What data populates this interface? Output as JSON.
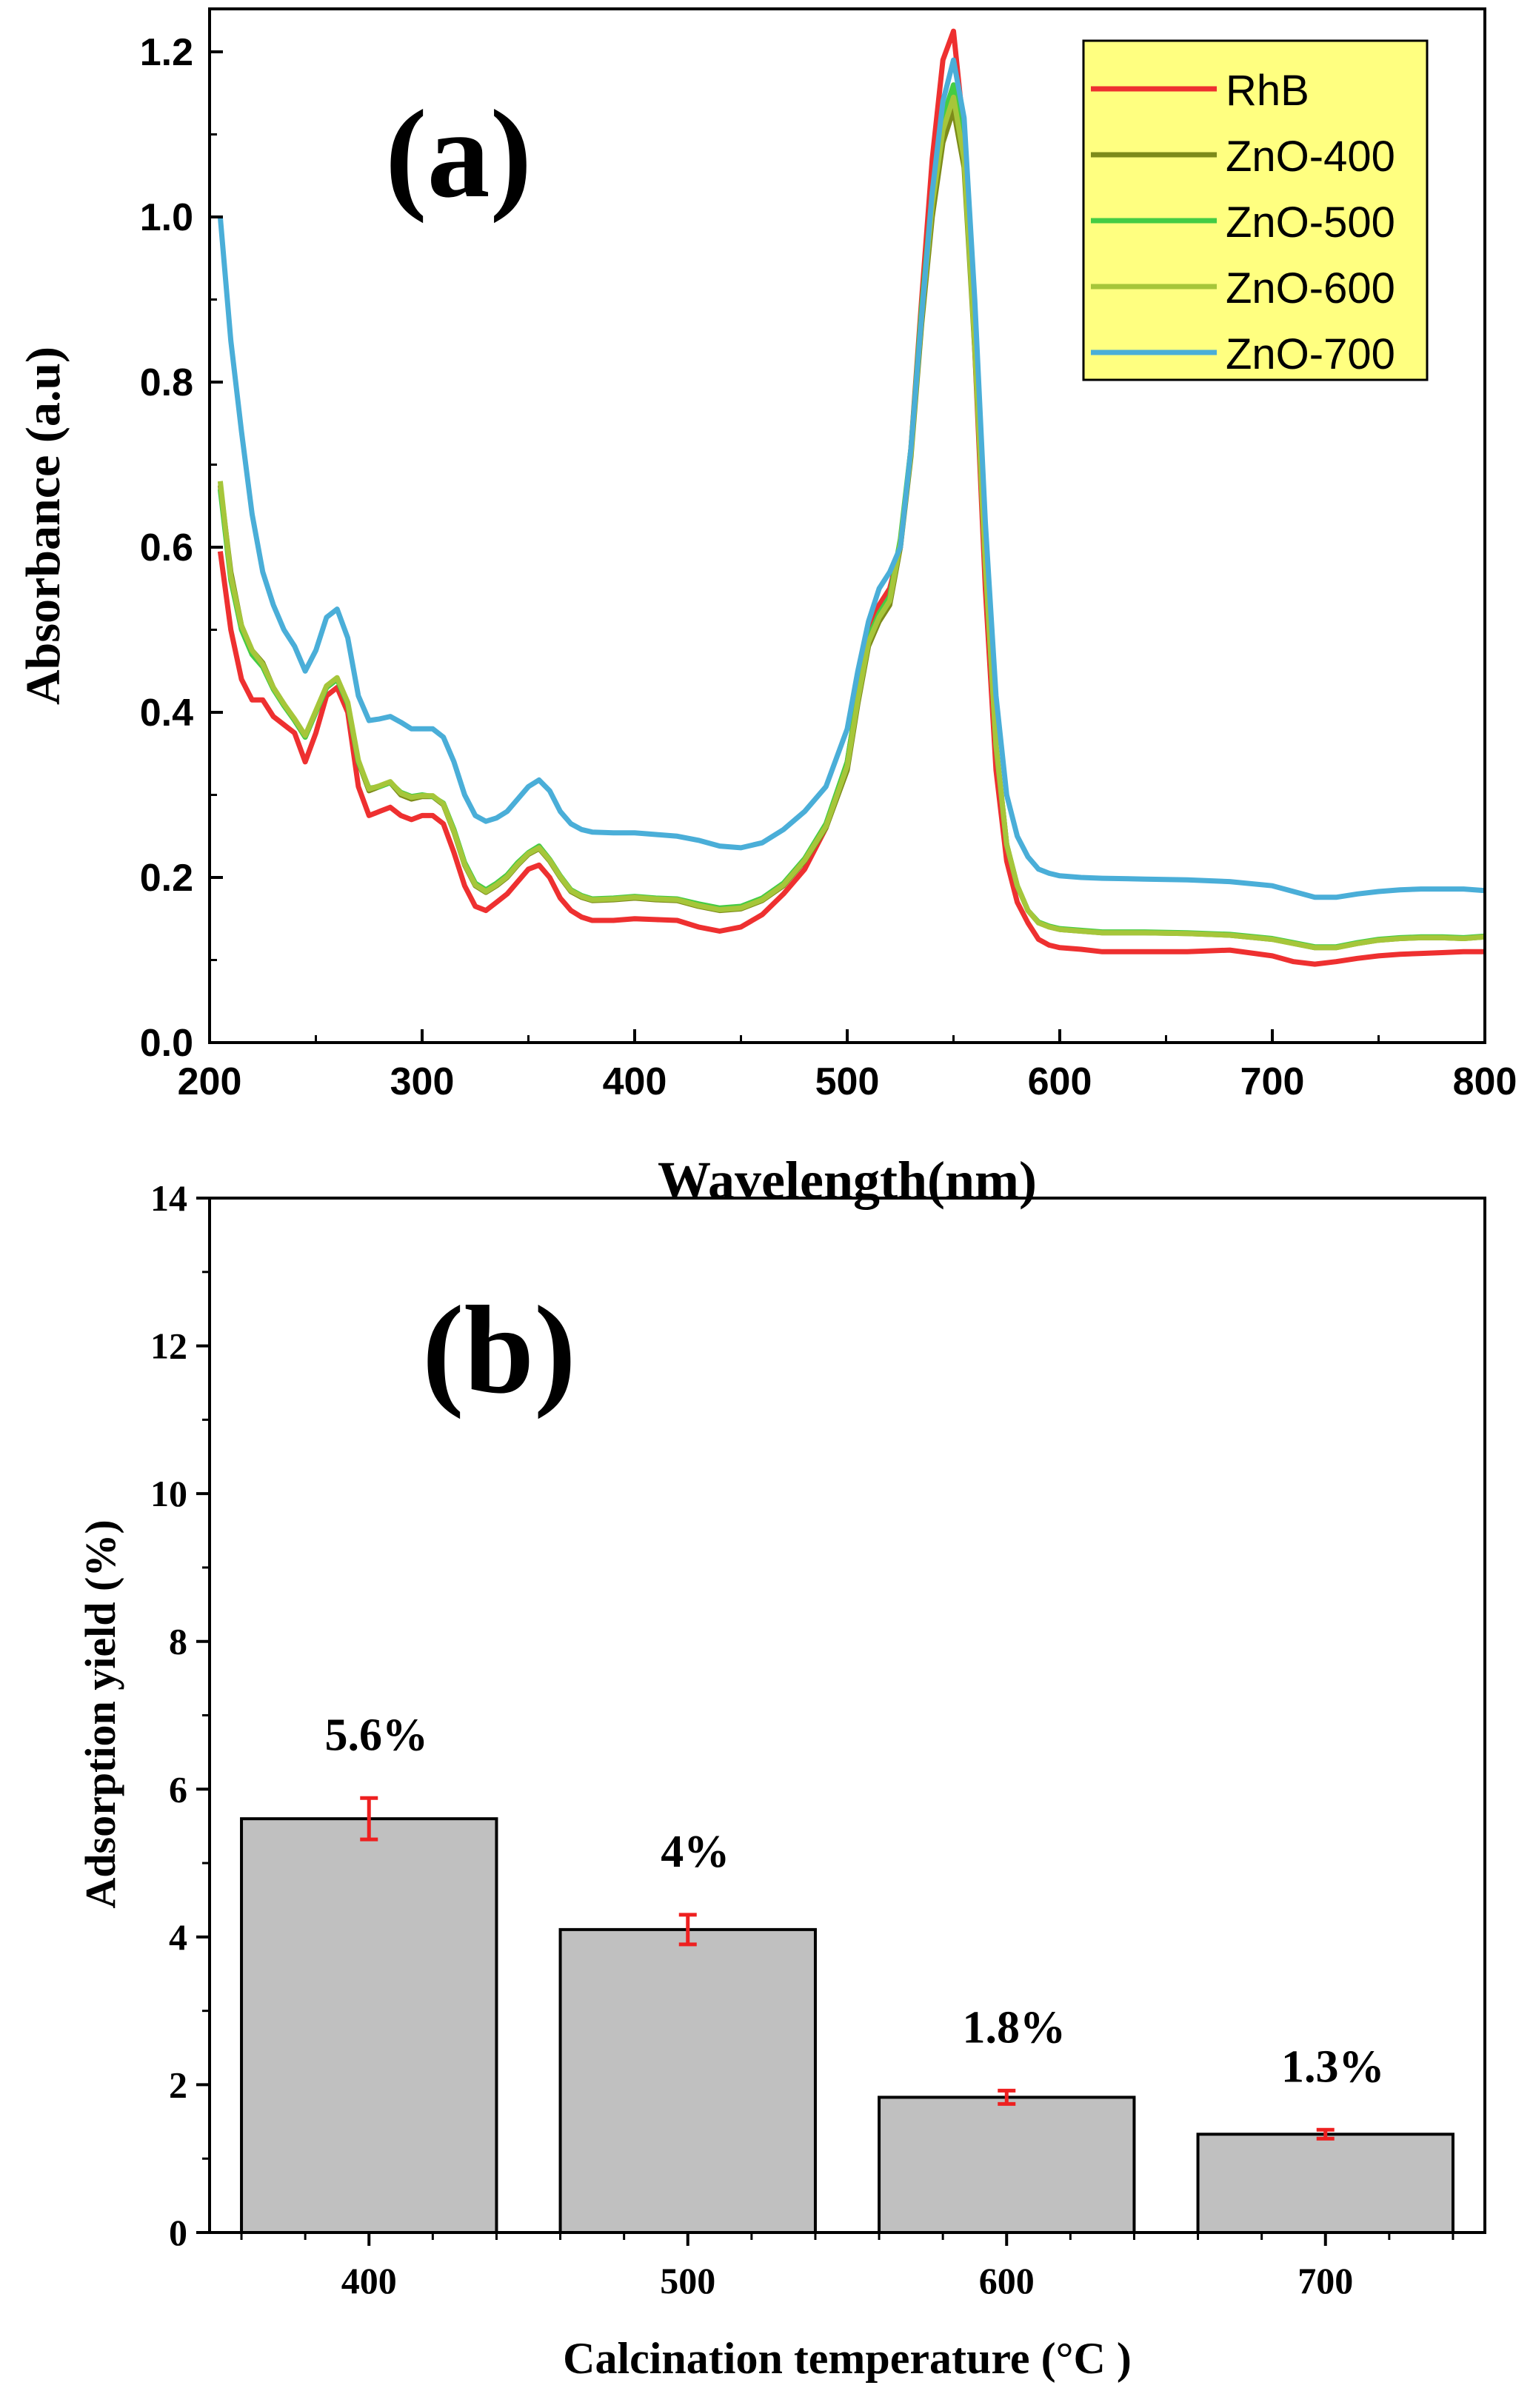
{
  "chart_data": [
    {
      "type": "line",
      "panel_label": "(a)",
      "xlabel": "Wavelength(nm)",
      "ylabel": "Absorbance  (a.u)",
      "xlim": [
        200,
        800
      ],
      "ylim": [
        0.0,
        1.25
      ],
      "xticks": [
        "200",
        "300",
        "400",
        "500",
        "600",
        "700",
        "800"
      ],
      "yticks": [
        "0.0",
        "0.2",
        "0.4",
        "0.6",
        "0.8",
        "1.0",
        "1.2"
      ],
      "legend_position": "top-right",
      "grid": false,
      "x": [
        205,
        210,
        215,
        220,
        225,
        230,
        235,
        240,
        245,
        250,
        255,
        260,
        265,
        270,
        275,
        280,
        285,
        290,
        295,
        300,
        305,
        310,
        315,
        320,
        325,
        330,
        335,
        340,
        345,
        350,
        355,
        360,
        365,
        370,
        375,
        380,
        390,
        400,
        410,
        420,
        430,
        440,
        450,
        460,
        470,
        480,
        490,
        500,
        505,
        510,
        515,
        520,
        525,
        530,
        535,
        540,
        545,
        550,
        555,
        560,
        565,
        570,
        575,
        580,
        585,
        590,
        595,
        600,
        610,
        620,
        640,
        660,
        680,
        700,
        710,
        720,
        730,
        740,
        750,
        760,
        770,
        780,
        790,
        800
      ],
      "series": [
        {
          "name": "RhB",
          "color": "#ee3030",
          "values": [
            0.595,
            0.5,
            0.44,
            0.415,
            0.415,
            0.395,
            0.385,
            0.375,
            0.34,
            0.375,
            0.42,
            0.43,
            0.4,
            0.31,
            0.275,
            0.28,
            0.285,
            0.275,
            0.27,
            0.275,
            0.275,
            0.265,
            0.23,
            0.19,
            0.165,
            0.16,
            0.17,
            0.18,
            0.195,
            0.21,
            0.215,
            0.2,
            0.175,
            0.16,
            0.152,
            0.148,
            0.148,
            0.15,
            0.149,
            0.148,
            0.14,
            0.135,
            0.14,
            0.155,
            0.18,
            0.21,
            0.26,
            0.34,
            0.42,
            0.49,
            0.53,
            0.55,
            0.6,
            0.72,
            0.9,
            1.07,
            1.19,
            1.225,
            1.1,
            0.84,
            0.55,
            0.33,
            0.22,
            0.17,
            0.145,
            0.125,
            0.118,
            0.115,
            0.113,
            0.11,
            0.11,
            0.11,
            0.112,
            0.105,
            0.098,
            0.095,
            0.098,
            0.102,
            0.105,
            0.107,
            0.108,
            0.109,
            0.11,
            0.11
          ]
        },
        {
          "name": "ZnO-400",
          "color": "#7d8b1a",
          "values": [
            0.675,
            0.57,
            0.505,
            0.475,
            0.46,
            0.43,
            0.41,
            0.39,
            0.37,
            0.4,
            0.43,
            0.44,
            0.41,
            0.34,
            0.305,
            0.31,
            0.315,
            0.3,
            0.295,
            0.298,
            0.298,
            0.288,
            0.255,
            0.215,
            0.19,
            0.182,
            0.19,
            0.2,
            0.215,
            0.228,
            0.235,
            0.22,
            0.2,
            0.183,
            0.176,
            0.172,
            0.173,
            0.175,
            0.173,
            0.172,
            0.165,
            0.16,
            0.162,
            0.172,
            0.19,
            0.22,
            0.26,
            0.33,
            0.41,
            0.48,
            0.51,
            0.53,
            0.6,
            0.71,
            0.87,
            1.0,
            1.09,
            1.13,
            1.06,
            0.84,
            0.58,
            0.36,
            0.24,
            0.19,
            0.16,
            0.145,
            0.14,
            0.137,
            0.135,
            0.133,
            0.133,
            0.132,
            0.13,
            0.125,
            0.12,
            0.115,
            0.115,
            0.12,
            0.124,
            0.126,
            0.127,
            0.127,
            0.126,
            0.128
          ]
        },
        {
          "name": "ZnO-500",
          "color": "#44cc44",
          "values": [
            0.67,
            0.56,
            0.5,
            0.47,
            0.455,
            0.428,
            0.408,
            0.39,
            0.37,
            0.4,
            0.43,
            0.44,
            0.41,
            0.34,
            0.308,
            0.31,
            0.315,
            0.303,
            0.298,
            0.3,
            0.298,
            0.29,
            0.258,
            0.218,
            0.193,
            0.185,
            0.193,
            0.203,
            0.218,
            0.23,
            0.238,
            0.222,
            0.202,
            0.185,
            0.178,
            0.174,
            0.175,
            0.177,
            0.175,
            0.174,
            0.168,
            0.163,
            0.165,
            0.175,
            0.193,
            0.223,
            0.265,
            0.34,
            0.42,
            0.49,
            0.52,
            0.54,
            0.61,
            0.72,
            0.89,
            1.03,
            1.12,
            1.16,
            1.08,
            0.85,
            0.58,
            0.36,
            0.24,
            0.19,
            0.16,
            0.146,
            0.141,
            0.138,
            0.136,
            0.134,
            0.134,
            0.133,
            0.131,
            0.126,
            0.121,
            0.116,
            0.116,
            0.121,
            0.125,
            0.127,
            0.128,
            0.128,
            0.127,
            0.129
          ]
        },
        {
          "name": "ZnO-600",
          "color": "#a6c63a",
          "values": [
            0.68,
            0.565,
            0.505,
            0.475,
            0.458,
            0.43,
            0.41,
            0.392,
            0.372,
            0.402,
            0.432,
            0.442,
            0.412,
            0.342,
            0.307,
            0.311,
            0.316,
            0.302,
            0.297,
            0.299,
            0.299,
            0.289,
            0.256,
            0.216,
            0.191,
            0.183,
            0.191,
            0.201,
            0.216,
            0.229,
            0.236,
            0.221,
            0.201,
            0.184,
            0.177,
            0.173,
            0.174,
            0.176,
            0.174,
            0.173,
            0.166,
            0.161,
            0.163,
            0.173,
            0.191,
            0.221,
            0.262,
            0.335,
            0.415,
            0.485,
            0.515,
            0.535,
            0.605,
            0.715,
            0.88,
            1.015,
            1.105,
            1.145,
            1.07,
            0.845,
            0.58,
            0.36,
            0.24,
            0.19,
            0.16,
            0.145,
            0.14,
            0.137,
            0.135,
            0.133,
            0.133,
            0.132,
            0.13,
            0.125,
            0.12,
            0.115,
            0.115,
            0.12,
            0.124,
            0.126,
            0.127,
            0.127,
            0.126,
            0.128
          ]
        },
        {
          "name": "ZnO-700",
          "color": "#4aaed8",
          "values": [
            1.0,
            0.85,
            0.74,
            0.64,
            0.57,
            0.53,
            0.5,
            0.48,
            0.45,
            0.475,
            0.515,
            0.525,
            0.49,
            0.42,
            0.39,
            0.392,
            0.395,
            0.388,
            0.38,
            0.38,
            0.38,
            0.37,
            0.34,
            0.3,
            0.275,
            0.268,
            0.272,
            0.28,
            0.295,
            0.31,
            0.318,
            0.305,
            0.28,
            0.265,
            0.258,
            0.255,
            0.254,
            0.254,
            0.252,
            0.25,
            0.245,
            0.238,
            0.236,
            0.242,
            0.258,
            0.28,
            0.31,
            0.38,
            0.45,
            0.51,
            0.55,
            0.57,
            0.6,
            0.72,
            0.88,
            1.03,
            1.14,
            1.19,
            1.12,
            0.9,
            0.63,
            0.42,
            0.3,
            0.25,
            0.225,
            0.21,
            0.205,
            0.202,
            0.2,
            0.199,
            0.198,
            0.197,
            0.195,
            0.19,
            0.183,
            0.176,
            0.176,
            0.18,
            0.183,
            0.185,
            0.186,
            0.186,
            0.186,
            0.184
          ]
        }
      ]
    },
    {
      "type": "bar",
      "panel_label": "(b)",
      "xlabel": "Calcination temperature (°C )",
      "ylabel": "Adsorption yield (%)",
      "ylim": [
        0,
        14
      ],
      "yticks": [
        "0",
        "2",
        "4",
        "6",
        "8",
        "10",
        "12",
        "14"
      ],
      "xlim": [
        350,
        750
      ],
      "grid": false,
      "bar_color": "#c0c0c0",
      "error_color": "#ee2020",
      "categories": [
        "400",
        "500",
        "600",
        "700"
      ],
      "x": [
        400,
        500,
        600,
        700
      ],
      "values": [
        5.6,
        4.1,
        1.83,
        1.33
      ],
      "errors": [
        0.28,
        0.2,
        0.09,
        0.06
      ],
      "data_labels": [
        "5.6%",
        "4%",
        "1.8%",
        "1.3%"
      ]
    }
  ]
}
